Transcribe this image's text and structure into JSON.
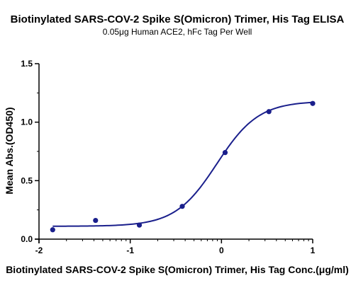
{
  "chart_data": {
    "type": "scatter",
    "title": "Biotinylated SARS-COV-2 Spike S(Omicron) Trimer, His Tag ELISA",
    "subtitle": "0.05μg Human ACE2, hFc Tag Per Well",
    "xlabel": "Biotinylated SARS-COV-2 Spike S(Omicron) Trimer, His Tag Conc.(μg/ml)",
    "ylabel": "Mean Abs.(OD450)",
    "xlim": [
      -2,
      1
    ],
    "ylim": [
      0,
      1.5
    ],
    "x_ticks": [
      -2,
      -1,
      0,
      1
    ],
    "y_ticks": [
      0.0,
      0.5,
      1.0,
      1.5
    ],
    "x_tick_labels": [
      "-2",
      "-1",
      "0",
      "1"
    ],
    "y_tick_labels": [
      "0.0",
      "0.5",
      "1.0",
      "1.5"
    ],
    "grid": false,
    "color": "#1a1f8c",
    "series": [
      {
        "points": [
          {
            "x": -1.85,
            "y": 0.08
          },
          {
            "x": -1.38,
            "y": 0.16
          },
          {
            "x": -0.9,
            "y": 0.12
          },
          {
            "x": -0.43,
            "y": 0.28
          },
          {
            "x": 0.04,
            "y": 0.74
          },
          {
            "x": 0.52,
            "y": 1.09
          },
          {
            "x": 1.0,
            "y": 1.16
          }
        ],
        "fit": {
          "model": "4PL",
          "bottom": 0.11,
          "top": 1.18,
          "ec50_log": -0.05,
          "hill": 1.9
        }
      }
    ]
  }
}
